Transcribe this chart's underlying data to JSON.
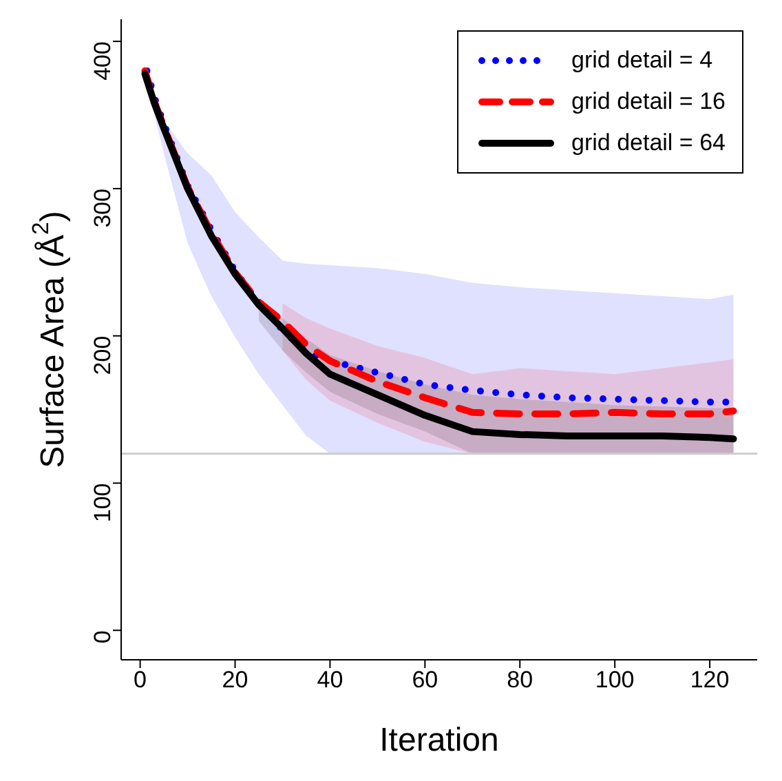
{
  "chart_data": {
    "type": "line",
    "xlabel": "Iteration",
    "ylabel": "Surface Area (Å$^{2}$)",
    "x": [
      1,
      3,
      5,
      10,
      15,
      20,
      25,
      30,
      35,
      40,
      50,
      60,
      70,
      80,
      90,
      100,
      110,
      120,
      125
    ],
    "xlim": [
      -4,
      130
    ],
    "xticks": [
      0,
      20,
      40,
      60,
      80,
      100,
      120
    ],
    "ylim": [
      -20,
      415
    ],
    "yticks": [
      0,
      100,
      200,
      300,
      400
    ],
    "grid": false,
    "legend": "top right",
    "marker": "none",
    "ref_lines": [
      {
        "axis": "y",
        "value": 120,
        "color": "#cccccc"
      }
    ],
    "series": [
      {
        "name": "grid detail = 4",
        "color": "#0000ff",
        "line_style": "dotted",
        "values": [
          385,
          362,
          344,
          302,
          272,
          244,
          222,
          204,
          189,
          183,
          175,
          167,
          163,
          160,
          158,
          157,
          156,
          155,
          155
        ],
        "lower": [
          378,
          350,
          324,
          263,
          227,
          199,
          174,
          153,
          132,
          120,
          120,
          120,
          120,
          120,
          120,
          120,
          120,
          120,
          120
        ],
        "upper": [
          385,
          355,
          346,
          324,
          309,
          284,
          267,
          251,
          249,
          248,
          246,
          242,
          236,
          233,
          231,
          229,
          227,
          225,
          228
        ]
      },
      {
        "name": "grid detail = 16",
        "color": "#ff0000",
        "line_style": "dashed",
        "values": [
          380,
          359,
          342,
          301,
          270,
          243,
          223,
          210,
          194,
          183,
          169,
          158,
          148,
          147,
          147,
          148,
          147,
          147,
          149
        ],
        "lower": [
          null,
          null,
          null,
          null,
          null,
          null,
          null,
          190,
          170,
          156,
          141,
          128,
          120,
          120,
          120,
          120,
          120,
          120,
          120
        ],
        "upper": [
          null,
          null,
          null,
          null,
          null,
          null,
          null,
          222,
          212,
          205,
          193,
          185,
          174,
          178,
          176,
          174,
          178,
          182,
          184
        ]
      },
      {
        "name": "grid detail = 64",
        "color": "#000000",
        "line_style": "solid",
        "values": [
          378,
          358,
          341,
          300,
          268,
          242,
          221,
          205,
          188,
          174,
          160,
          146,
          135,
          133,
          132,
          132,
          132,
          131,
          130
        ],
        "lower": [
          null,
          null,
          null,
          null,
          null,
          null,
          210,
          190,
          175,
          162,
          147,
          135,
          120,
          120,
          120,
          120,
          120,
          120,
          120
        ],
        "upper": [
          null,
          null,
          null,
          null,
          null,
          null,
          226,
          212,
          198,
          187,
          176,
          167,
          160,
          157,
          155,
          153,
          152,
          151,
          151
        ]
      }
    ]
  }
}
